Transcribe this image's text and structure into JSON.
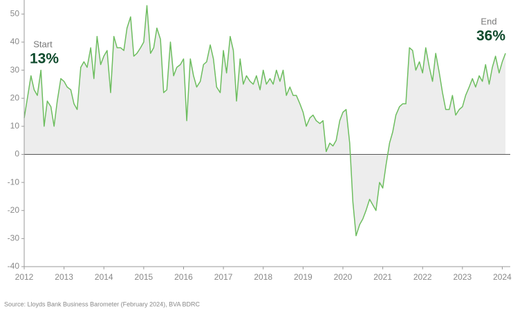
{
  "chart_data": {
    "type": "area",
    "annotations": {
      "start_label": "Start",
      "start_value": "13%",
      "end_label": "End",
      "end_value": "36%"
    },
    "source": "Source: Lloyds Bank Business Barometer (February 2024), BVA BDRC",
    "x": [
      2012,
      2012.08,
      2012.17,
      2012.25,
      2012.33,
      2012.42,
      2012.5,
      2012.58,
      2012.67,
      2012.75,
      2012.83,
      2012.92,
      2013,
      2013.08,
      2013.17,
      2013.25,
      2013.33,
      2013.42,
      2013.5,
      2013.58,
      2013.67,
      2013.75,
      2013.83,
      2013.92,
      2014,
      2014.08,
      2014.17,
      2014.25,
      2014.33,
      2014.42,
      2014.5,
      2014.58,
      2014.67,
      2014.75,
      2014.83,
      2014.92,
      2015,
      2015.08,
      2015.17,
      2015.25,
      2015.33,
      2015.42,
      2015.5,
      2015.58,
      2015.67,
      2015.75,
      2015.83,
      2015.92,
      2016,
      2016.08,
      2016.17,
      2016.25,
      2016.33,
      2016.42,
      2016.5,
      2016.58,
      2016.67,
      2016.75,
      2016.83,
      2016.92,
      2017,
      2017.08,
      2017.17,
      2017.25,
      2017.33,
      2017.42,
      2017.5,
      2017.58,
      2017.67,
      2017.75,
      2017.83,
      2017.92,
      2018,
      2018.08,
      2018.17,
      2018.25,
      2018.33,
      2018.42,
      2018.5,
      2018.58,
      2018.67,
      2018.75,
      2018.83,
      2018.92,
      2019,
      2019.08,
      2019.17,
      2019.25,
      2019.33,
      2019.42,
      2019.5,
      2019.58,
      2019.67,
      2019.75,
      2019.83,
      2019.92,
      2020,
      2020.08,
      2020.17,
      2020.25,
      2020.33,
      2020.42,
      2020.5,
      2020.58,
      2020.67,
      2020.75,
      2020.83,
      2020.92,
      2021,
      2021.08,
      2021.17,
      2021.25,
      2021.33,
      2021.42,
      2021.5,
      2021.58,
      2021.67,
      2021.75,
      2021.83,
      2021.92,
      2022,
      2022.08,
      2022.17,
      2022.25,
      2022.33,
      2022.42,
      2022.5,
      2022.58,
      2022.67,
      2022.75,
      2022.83,
      2022.92,
      2023,
      2023.08,
      2023.17,
      2023.25,
      2023.33,
      2023.42,
      2023.5,
      2023.58,
      2023.67,
      2023.75,
      2023.83,
      2023.92,
      2024,
      2024.08
    ],
    "values": [
      13,
      20,
      28,
      23,
      21,
      30,
      10,
      19,
      17,
      10,
      19,
      27,
      26,
      24,
      23,
      18,
      16,
      31,
      33,
      31,
      38,
      27,
      42,
      32,
      35,
      37,
      22,
      42,
      38,
      38,
      37,
      45,
      49,
      35,
      36,
      38,
      40,
      53,
      36,
      38,
      45,
      41,
      22,
      23,
      40,
      28,
      31,
      32,
      34,
      12,
      34,
      28,
      24,
      26,
      32,
      33,
      39,
      34,
      24,
      22,
      37,
      29,
      42,
      37,
      19,
      34,
      25,
      28,
      26,
      25,
      28,
      23,
      30,
      25,
      27,
      25,
      30,
      26,
      30,
      21,
      24,
      21,
      21,
      18,
      15,
      10,
      13,
      14,
      12,
      11,
      12,
      1,
      4,
      3,
      5,
      12,
      15,
      16,
      4,
      -17,
      -29,
      -25,
      -23,
      -20,
      -16,
      -18,
      -20,
      -10,
      -12,
      -4,
      4,
      8,
      14,
      17,
      18,
      18,
      38,
      37,
      30,
      33,
      29,
      38,
      31,
      26,
      36,
      29,
      22,
      16,
      16,
      21,
      14,
      16,
      17,
      21,
      24,
      27,
      24,
      28,
      26,
      32,
      25,
      31,
      35,
      29,
      33,
      36
    ],
    "color": "#6dbd5f",
    "fill": "#ededed",
    "xlim": [
      2012,
      2024.2
    ],
    "xticks": [
      2012,
      2013,
      2014,
      2015,
      2016,
      2017,
      2018,
      2019,
      2020,
      2021,
      2022,
      2023,
      2024
    ],
    "ylim": [
      -40,
      55
    ],
    "yticks": [
      -40,
      -30,
      -20,
      -10,
      0,
      10,
      20,
      30,
      40,
      50
    ]
  }
}
